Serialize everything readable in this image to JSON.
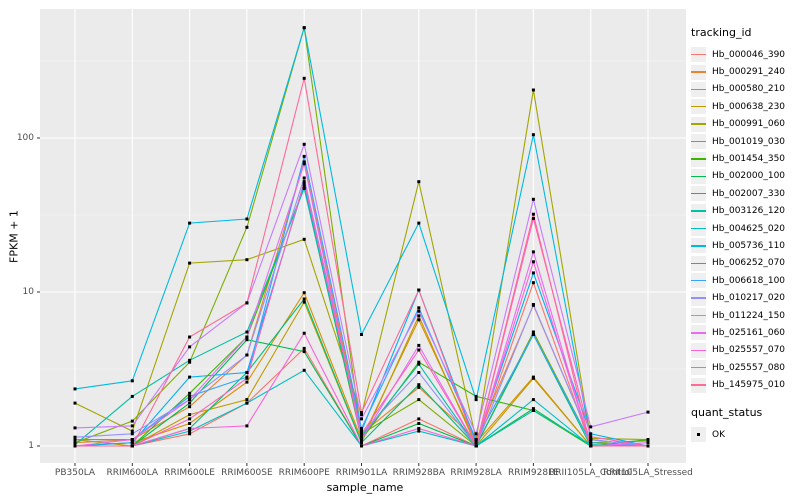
{
  "chart_data": {
    "type": "line",
    "title": "",
    "xlabel": "sample_name",
    "ylabel": "FPKM + 1",
    "y_scale": "log10",
    "y_ticks": [
      1,
      10,
      100
    ],
    "ylim": [
      1,
      680
    ],
    "grid": "on",
    "panel_bg": "#EBEBEB",
    "marker": "black-square",
    "legend_position": "right",
    "legend_title": "tracking_id",
    "categories": [
      "PB350LA",
      "RRIM600LA",
      "RRIM600LE",
      "RRIM600SE",
      "RRIM600PE",
      "RRIM901LA",
      "RRIM928BA",
      "RRIM928LA",
      "RRIM928LE",
      "RRII105LA_Control",
      "RRII105LA_Stressed"
    ],
    "series": [
      {
        "name": "Hb_000046_390",
        "color": "#F8766D",
        "values": [
          1.0,
          1.0,
          1.2,
          1.9,
          4.3,
          1.0,
          1.5,
          1.0,
          11.5,
          1.0,
          1.0
        ]
      },
      {
        "name": "Hb_000291_240",
        "color": "#EA8331",
        "values": [
          1.05,
          1.1,
          1.8,
          3.9,
          70,
          1.2,
          2.4,
          1.1,
          8.2,
          1.1,
          1.0
        ]
      },
      {
        "name": "Hb_000580_210",
        "color": "#D89000",
        "values": [
          1.0,
          1.05,
          1.4,
          2.6,
          9.9,
          1.1,
          6.6,
          1.05,
          2.8,
          1.0,
          1.0
        ]
      },
      {
        "name": "Hb_000638_230",
        "color": "#C09B00",
        "values": [
          1.1,
          1.0,
          1.6,
          2.0,
          8.6,
          1.05,
          7.0,
          1.0,
          2.75,
          1.0,
          1.0
        ]
      },
      {
        "name": "Hb_000991_060",
        "color": "#A3A500",
        "values": [
          1.9,
          1.25,
          15.4,
          16.2,
          22,
          1.6,
          52,
          1.1,
          205,
          1.12,
          1.1
        ]
      },
      {
        "name": "Hb_001019_030",
        "color": "#7CAE00",
        "values": [
          1.05,
          1.45,
          3.5,
          26.3,
          520,
          1.2,
          2.0,
          1.0,
          5.5,
          1.05,
          1.08
        ]
      },
      {
        "name": "Hb_001454_350",
        "color": "#39B600",
        "values": [
          1.0,
          1.0,
          2.2,
          5.1,
          48,
          1.1,
          3.5,
          2.1,
          1.7,
          1.0,
          1.1
        ]
      },
      {
        "name": "Hb_002000_100",
        "color": "#00BB4E",
        "values": [
          1.0,
          1.0,
          1.9,
          4.9,
          4.1,
          1.0,
          1.4,
          1.0,
          1.75,
          1.0,
          1.0
        ]
      },
      {
        "name": "Hb_002007_330",
        "color": "#00BF7D",
        "values": [
          1.0,
          1.0,
          1.3,
          3.0,
          9.0,
          1.05,
          2.5,
          1.0,
          5.3,
          1.0,
          1.0
        ]
      },
      {
        "name": "Hb_003126_120",
        "color": "#00C1A3",
        "values": [
          1.02,
          2.1,
          3.6,
          5.5,
          47,
          1.15,
          3.4,
          1.0,
          1.7,
          1.02,
          1.0
        ]
      },
      {
        "name": "Hb_004625_020",
        "color": "#00BFC4",
        "values": [
          1.0,
          1.0,
          1.25,
          1.9,
          3.1,
          1.0,
          1.25,
          1.0,
          2.0,
          1.0,
          1.0
        ]
      },
      {
        "name": "Hb_005736_110",
        "color": "#00BAE0",
        "values": [
          2.35,
          2.65,
          28,
          29.8,
          520,
          5.3,
          28,
          2.0,
          105,
          1.1,
          1.0
        ]
      },
      {
        "name": "Hb_006252_070",
        "color": "#00B0F6",
        "values": [
          1.0,
          1.05,
          2.8,
          3.0,
          50,
          1.25,
          10.3,
          1.05,
          13.3,
          1.2,
          1.0
        ]
      },
      {
        "name": "Hb_006618_100",
        "color": "#35A2FF",
        "values": [
          1.1,
          1.1,
          2.1,
          2.8,
          76,
          1.3,
          7.9,
          1.1,
          5.3,
          1.05,
          1.0
        ]
      },
      {
        "name": "Hb_010217_020",
        "color": "#9590FF",
        "values": [
          1.14,
          1.2,
          2.0,
          3.9,
          55,
          1.2,
          3.0,
          1.0,
          8.3,
          1.1,
          1.0
        ]
      },
      {
        "name": "Hb_011224_150",
        "color": "#C77CFF",
        "values": [
          1.31,
          1.35,
          4.4,
          8.5,
          91,
          1.5,
          7.5,
          1.2,
          40,
          1.33,
          1.66
        ]
      },
      {
        "name": "Hb_025161_060",
        "color": "#E76BF3",
        "values": [
          1.0,
          1.1,
          2.0,
          5.1,
          68,
          1.1,
          4.5,
          1.0,
          18.2,
          1.0,
          1.05
        ]
      },
      {
        "name": "Hb_025557_070",
        "color": "#FA62DB",
        "values": [
          1.0,
          1.0,
          1.3,
          1.35,
          5.4,
          1.0,
          1.3,
          1.0,
          15.7,
          1.0,
          1.0
        ]
      },
      {
        "name": "Hb_025557_080",
        "color": "#FF62BC",
        "values": [
          1.0,
          1.0,
          1.5,
          2.75,
          52,
          1.2,
          4.2,
          1.0,
          30,
          1.15,
          1.0
        ]
      },
      {
        "name": "Hb_145975_010",
        "color": "#FF6A98",
        "values": [
          1.0,
          1.0,
          5.1,
          8.5,
          244,
          1.65,
          10.3,
          1.0,
          32,
          1.0,
          1.0
        ]
      }
    ],
    "quant_legend": {
      "title": "quant_status",
      "items": [
        {
          "label": "OK"
        }
      ]
    }
  }
}
